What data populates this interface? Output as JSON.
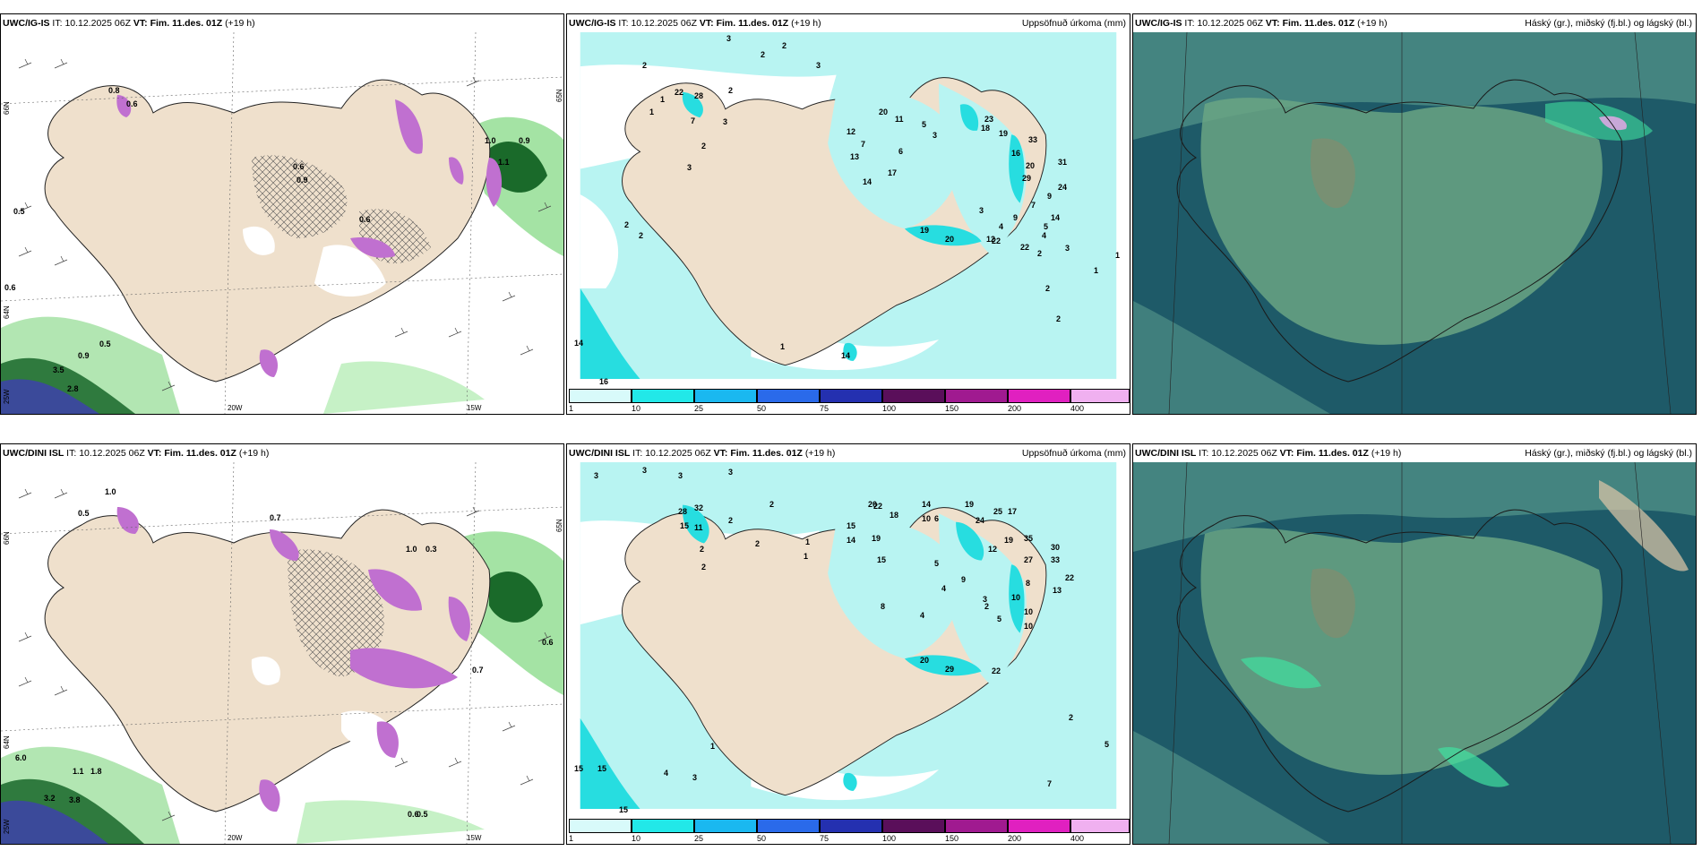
{
  "colors": {
    "land": "#efe0cc",
    "sea_white": "#ffffff",
    "precip_light": "#b8f4f2",
    "precip_mid": "#27dde0",
    "cloud_dark": "#1e5a68",
    "cloud_mid": "#4e8f86",
    "cloud_green": "#6aa584",
    "snow_pink": "#c070d0",
    "green_band": "#7ed07e",
    "dark_green": "#1a6a2a"
  },
  "panels": {
    "top_left": {
      "model": "UWC/IG-IS",
      "it_label": "IT:",
      "it_value": "10.12.2025 06Z",
      "vt_label": "VT:",
      "vt_value": "Fim. 11.des. 01Z",
      "lead": "(+19 h)"
    },
    "top_mid": {
      "model": "UWC/IG-IS",
      "it_label": "IT:",
      "it_value": "10.12.2025 06Z",
      "vt_label": "VT:",
      "vt_value": "Fim. 11.des. 01Z",
      "lead": "(+19 h)",
      "right_title": "Uppsöfnuð úrkoma (mm)"
    },
    "top_right": {
      "model": "UWC/IG-IS",
      "it_label": "IT:",
      "it_value": "10.12.2025 06Z",
      "vt_label": "VT:",
      "vt_value": "Fim. 11.des. 01Z",
      "lead": "(+19 h)",
      "right_title": "Háský (gr.), miðský (fj.bl.) og lágský (bl.)"
    },
    "bot_left": {
      "model": "UWC/DINI ISL",
      "it_label": "IT:",
      "it_value": "10.12.2025 06Z",
      "vt_label": "VT:",
      "vt_value": "Fim. 11.des. 01Z",
      "lead": "(+19 h)"
    },
    "bot_mid": {
      "model": "UWC/DINI ISL",
      "it_label": "IT:",
      "it_value": "10.12.2025 06Z",
      "vt_label": "VT:",
      "vt_value": "Fim. 11.des. 01Z",
      "lead": "(+19 h)",
      "right_title": "Uppsöfnuð úrkoma (mm)"
    },
    "bot_right": {
      "model": "UWC/DINI ISL",
      "it_label": "IT:",
      "it_value": "10.12.2025 06Z",
      "vt_label": "VT:",
      "vt_value": "Fim. 11.des. 01Z",
      "lead": "(+19 h)",
      "right_title": "Háský (gr.), miðský (fj.bl.) og lágský (bl.)"
    }
  },
  "axis_labels": {
    "lat66": "66N",
    "lat65": "65N",
    "lat64": "64N",
    "lon25": "25W",
    "lon20": "20W",
    "lon15": "15W"
  },
  "colorbar": {
    "ticks": [
      "1",
      "10",
      "25",
      "50",
      "75",
      "100",
      "150",
      "200",
      "400"
    ],
    "colors": [
      "#d8fafa",
      "#22e8e8",
      "#1ab8f0",
      "#2a6aea",
      "#2430b0",
      "#5a0f5a",
      "#a01a90",
      "#e020c0",
      "#f0b0f0"
    ]
  },
  "top_precip_labels": {
    "west_sea": [
      "3",
      "2",
      "2",
      "2",
      "3",
      "2",
      "2",
      "3",
      "7",
      "1",
      "1",
      "22",
      "28",
      "2",
      "3"
    ],
    "north_east": [
      "20",
      "11",
      "5",
      "3",
      "12",
      "7",
      "6",
      "17",
      "13",
      "14",
      "23",
      "18",
      "19",
      "16",
      "33",
      "31",
      "29",
      "24",
      "14",
      "9",
      "7",
      "9",
      "5",
      "4",
      "3",
      "12",
      "20",
      "22",
      "4",
      "3",
      "2",
      "1",
      "1",
      "2"
    ],
    "south": [
      "19",
      "20",
      "22",
      "2",
      "14",
      "16",
      "1",
      "2",
      "14"
    ]
  },
  "bot_precip_labels": {
    "west_sea": [
      "3",
      "3",
      "3",
      "3",
      "2",
      "2",
      "1",
      "2",
      "28",
      "32",
      "15",
      "11",
      "2",
      "2",
      "1"
    ],
    "north_east": [
      "20",
      "22",
      "18",
      "14",
      "10",
      "6",
      "19",
      "24",
      "25",
      "17",
      "19",
      "12",
      "35",
      "27",
      "30",
      "33",
      "13",
      "22",
      "15",
      "19",
      "15",
      "14",
      "8",
      "5",
      "9",
      "4",
      "3",
      "10",
      "10",
      "10",
      "8",
      "4",
      "2",
      "5"
    ],
    "south": [
      "20",
      "29",
      "22",
      "15",
      "15",
      "4",
      "3",
      "1",
      "15",
      "2",
      "5",
      "7"
    ]
  },
  "top_snow_values": [
    "0.5",
    "0.8",
    "0.6",
    "1.0",
    "0.9",
    "1.1",
    "0.6",
    "0.9",
    "3.5",
    "2.8",
    "0.5",
    "0.9",
    "0.6",
    "0.6"
  ],
  "bot_snow_values": [
    "0.5",
    "1.0",
    "0.7",
    "6.0",
    "3.2",
    "3.8",
    "1.1",
    "1.8",
    "0.6",
    "0.5",
    "0.6",
    "0.7",
    "0.3",
    "1.0"
  ]
}
